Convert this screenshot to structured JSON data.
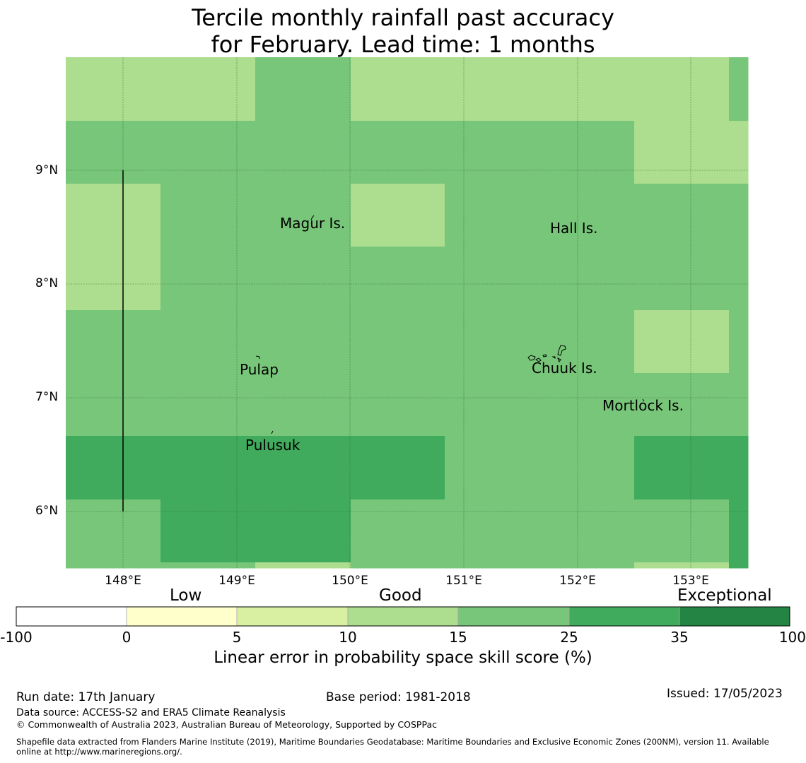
{
  "title": {
    "line1": "Tercile monthly rainfall past accuracy",
    "line2": "for February. Lead time: 1 months"
  },
  "map": {
    "lat_labels": [
      "9°N",
      "8°N",
      "7°N",
      "6°N"
    ],
    "lon_labels": [
      "148°E",
      "149°E",
      "150°E",
      "151°E",
      "152°E",
      "153°E"
    ],
    "places": {
      "magur": "Magur Is.",
      "hall": "Hall Is.",
      "pulap": "Pulap",
      "chuuk": "Chuuk Is.",
      "mortlock": "Mortlock Is.",
      "pulusuk": "Pulusuk"
    },
    "lon_range": [
      147.5,
      153.5
    ],
    "lat_range": [
      5.5,
      10.0
    ]
  },
  "colorbar": {
    "categories": {
      "low": "Low",
      "good": "Good",
      "exceptional": "Exceptional"
    },
    "ticks": [
      "-100",
      "0",
      "5",
      "10",
      "15",
      "25",
      "35",
      "100"
    ],
    "colors": [
      "#ffffff",
      "#ffffcc",
      "#d9f0a3",
      "#addd8e",
      "#78c679",
      "#41ab5d",
      "#238443"
    ],
    "label": "Linear error in probability space skill score (%)"
  },
  "footer": {
    "run_date": "Run date: 17th January",
    "base_period": "Base period: 1981-2018",
    "issued": "Issued: 17/05/2023",
    "data_source": "Data source: ACCESS-S2 and ERA5 Climate Reanalysis",
    "copyright": "© Commonwealth of Australia 2023, Australian Bureau of Meteorology, Supported by COSPPac",
    "shapefile_line1": "Shapefile data extracted from Flanders Marine Institute (2019), Maritime Boundaries Geodatabase: Maritime Boundaries and Exclusive Economic Zones (200NM), version 11. Available",
    "shapefile_line2": "online at http://www.marineregions.org/."
  }
}
